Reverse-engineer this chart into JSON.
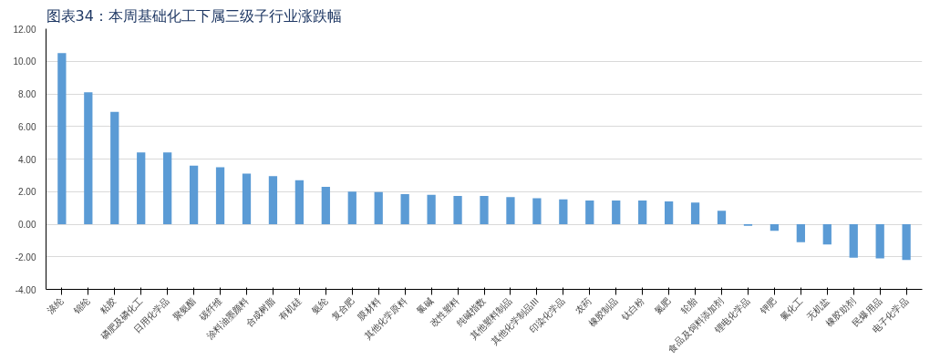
{
  "chart_data": {
    "type": "bar",
    "title": "图表34：本周基础化工下属三级子行业涨跌幅",
    "categories": [
      "涤纶",
      "锦纶",
      "粘胶",
      "磷肥及磷化工",
      "日用化学品",
      "聚氨酯",
      "碳纤维",
      "涂料油墨颜料",
      "合成树脂",
      "有机硅",
      "氨纶",
      "复合肥",
      "膜材料",
      "其他化学原料",
      "氯碱",
      "改性塑料",
      "纯碱指数",
      "其他塑料制品",
      "其他化学制品III",
      "印染化学品",
      "农药",
      "橡胶制品",
      "钛白粉",
      "氮肥",
      "轮胎",
      "食品及饲料添加剂",
      "锂电化学品",
      "钾肥",
      "氟化工",
      "无机盐",
      "橡胶助剂",
      "民爆用品",
      "电子化学品"
    ],
    "values": [
      10.5,
      8.1,
      6.9,
      4.4,
      4.4,
      3.6,
      3.5,
      3.1,
      2.95,
      2.7,
      2.3,
      2.0,
      1.97,
      1.85,
      1.8,
      1.73,
      1.73,
      1.67,
      1.6,
      1.53,
      1.46,
      1.46,
      1.46,
      1.4,
      1.33,
      0.83,
      -0.1,
      -0.4,
      -1.1,
      -1.25,
      -2.05,
      -2.1,
      -2.2
    ],
    "color": "#5b9bd5",
    "ylim": [
      -4,
      12
    ],
    "yticks": [
      {
        "value": -4,
        "label": "-4.00"
      },
      {
        "value": -2,
        "label": "-2.00"
      },
      {
        "value": 0,
        "label": "0.00"
      },
      {
        "value": 2,
        "label": "2.00"
      },
      {
        "value": 4,
        "label": "4.00"
      },
      {
        "value": 6,
        "label": "6.00"
      },
      {
        "value": 8,
        "label": "8.00"
      },
      {
        "value": 10,
        "label": "10.00"
      },
      {
        "value": 12,
        "label": "12.00"
      }
    ],
    "grid": "y"
  }
}
